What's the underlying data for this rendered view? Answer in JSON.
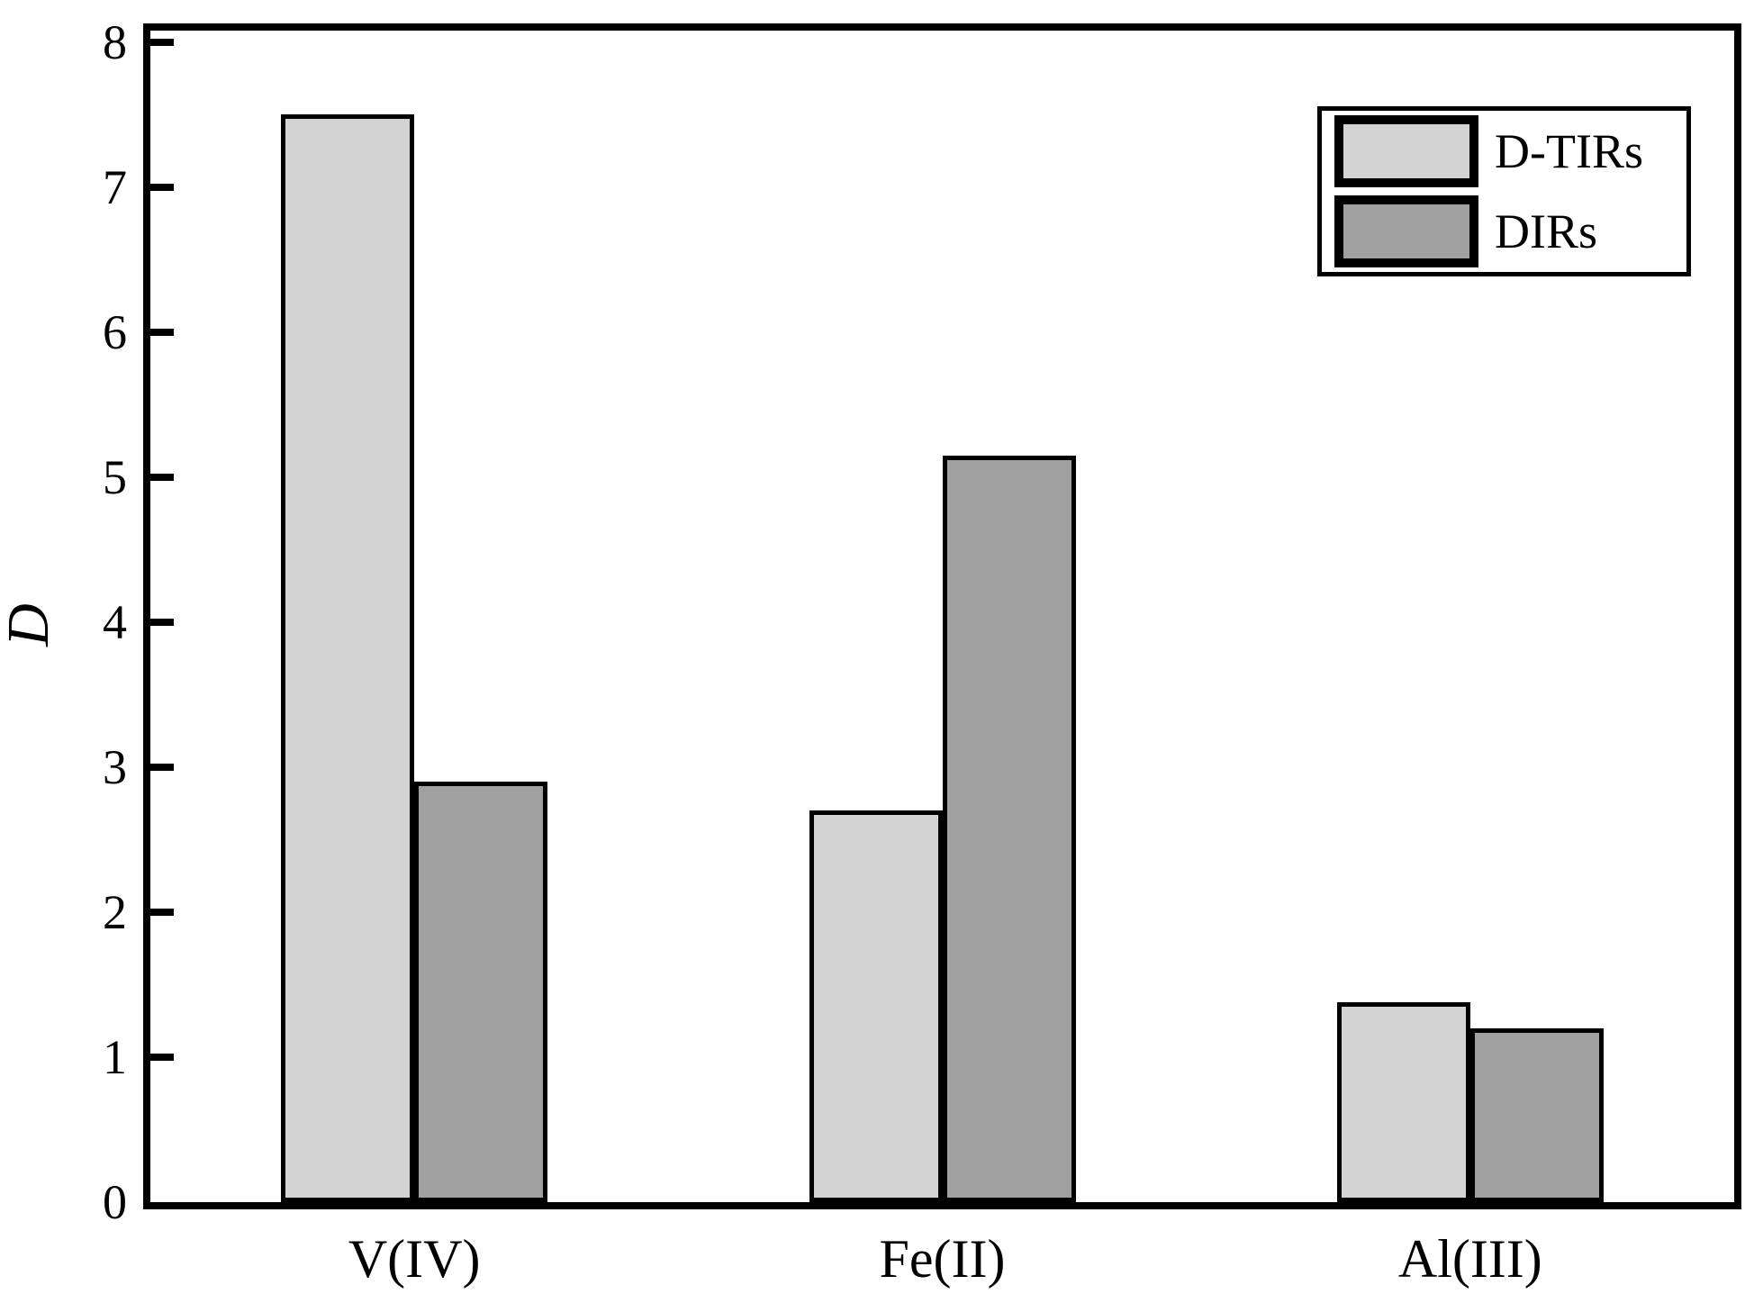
{
  "chart_data": {
    "type": "bar",
    "title": "",
    "xlabel": "",
    "ylabel": "D",
    "categories": [
      "V(IV)",
      "Fe(II)",
      "Al(III)"
    ],
    "series": [
      {
        "name": "D-TIRs",
        "color": "#d3d3d3",
        "values": [
          7.5,
          2.7,
          1.38
        ]
      },
      {
        "name": "DIRs",
        "color": "#a0a0a0",
        "values": [
          2.9,
          5.15,
          1.2
        ]
      }
    ],
    "ylim": [
      0,
      8.08
    ],
    "yticks": [
      0,
      1,
      2,
      3,
      4,
      5,
      6,
      7,
      8
    ],
    "grid": false,
    "legend_position": "top-right",
    "bar_edge_color": "#000000",
    "axis_color": "#000000",
    "background_color": "#ffffff"
  }
}
